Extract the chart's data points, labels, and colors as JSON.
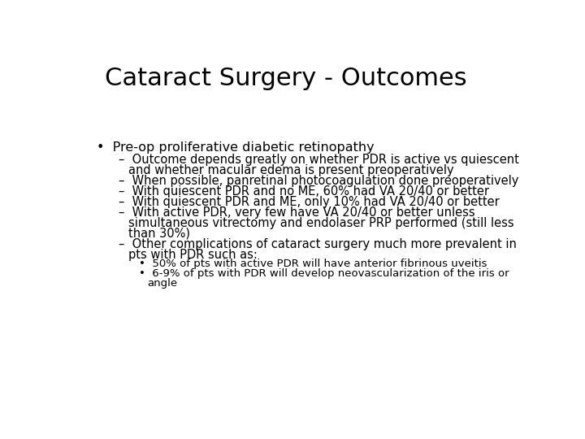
{
  "title": "Cataract Surgery - Outcomes",
  "background_color": "#ffffff",
  "text_color": "#000000",
  "title_fontsize": 22,
  "body_fontsize": 11.5,
  "sub_fontsize": 10.5,
  "subsub_fontsize": 9.5,
  "bullet_main": "Pre-op proliferative diabetic retinopathy",
  "dash_items": [
    [
      "Outcome depends greatly on whether PDR is active vs quiescent",
      "and whether macular edema is present preoperatively"
    ],
    [
      "When possible, panretinal photocoagulation done preoperatively"
    ],
    [
      "With quiescent PDR and no ME, 60% had VA 20/40 or better"
    ],
    [
      "With quiescent PDR and ME, only 10% had VA 20/40 or better"
    ],
    [
      "With active PDR, very few have VA 20/40 or better unless",
      "simultaneous vitrectomy and endolaser PRP performed (still less",
      "than 30%)"
    ],
    [
      "Other complications of cataract surgery much more prevalent in",
      "pts with PDR such as:"
    ]
  ],
  "sub_bullets": [
    [
      "50% of pts with active PDR will have anterior fibrinous uveitis"
    ],
    [
      "6-9% of pts with PDR will develop neovascularization of the iris or",
      "angle"
    ]
  ]
}
